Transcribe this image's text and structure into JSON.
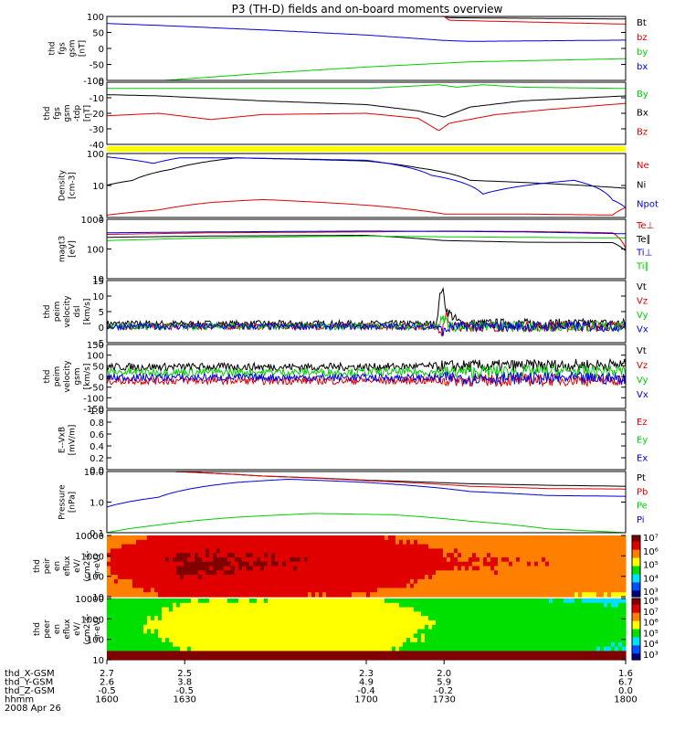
{
  "title": "P3 (TH-D) fields and on-board moments overview",
  "colors": {
    "black": "#000000",
    "red": "#e00000",
    "green": "#00cc00",
    "blue": "#0000e0",
    "yellow": "#ffff00"
  },
  "chart_data": [
    {
      "type": "line",
      "id": "fgs-gsm",
      "ylabel": [
        "thd",
        "fgs",
        "gsm",
        "[nT]"
      ],
      "ylim": [
        -100,
        100
      ],
      "yticks": [
        "100",
        "50",
        "0",
        "-50",
        "-100"
      ],
      "legend": [
        "Bt",
        "bz",
        "by",
        "bx"
      ],
      "series": [
        {
          "name": "Bt",
          "color": "black",
          "x": [
            1600,
            1730,
            1732,
            1800
          ],
          "y": [
            100,
            100,
            96,
            92
          ]
        },
        {
          "name": "bz",
          "color": "red",
          "x": [
            1600,
            1730,
            1732,
            1800
          ],
          "y": [
            100,
            100,
            88,
            76
          ]
        },
        {
          "name": "by",
          "color": "green",
          "x": [
            1600,
            1622,
            1660,
            1700,
            1740,
            1800
          ],
          "y": [
            -125,
            -100,
            -78,
            -58,
            -42,
            -32
          ]
        },
        {
          "name": "bx",
          "color": "blue",
          "x": [
            1600,
            1620,
            1660,
            1700,
            1730,
            1740,
            1800
          ],
          "y": [
            78,
            72,
            58,
            42,
            25,
            22,
            26
          ]
        }
      ]
    },
    {
      "type": "line",
      "id": "fgs-gsm-tdp",
      "ylabel": [
        "thd",
        "fgs",
        "gsm",
        "-tdp",
        "[nT]"
      ],
      "ylim": [
        -45,
        5
      ],
      "yticks": [
        "0",
        "-10",
        "-20",
        "-30",
        "-40"
      ],
      "legend": [
        "By",
        "Bx",
        "Bz"
      ],
      "series": [
        {
          "name": "By",
          "color": "green",
          "x": [
            1600,
            1640,
            1700,
            1728,
            1735,
            1745,
            1760,
            1800
          ],
          "y": [
            0,
            0,
            0,
            3,
            1,
            3,
            1,
            0
          ]
        },
        {
          "name": "Bx",
          "color": "black",
          "x": [
            1600,
            1620,
            1660,
            1700,
            1720,
            1730,
            1740,
            1760,
            1800
          ],
          "y": [
            -5,
            -6,
            -10,
            -13,
            -18,
            -23,
            -15,
            -10,
            -6
          ]
        },
        {
          "name": "Bz",
          "color": "red",
          "x": [
            1600,
            1620,
            1640,
            1660,
            1700,
            1720,
            1728,
            1732,
            1750,
            1770,
            1800
          ],
          "y": [
            -22,
            -20,
            -25,
            -21,
            -20,
            -24,
            -34,
            -28,
            -21,
            -17,
            -12
          ]
        }
      ]
    },
    {
      "type": "line",
      "id": "density",
      "log": true,
      "ylabel": [
        "Density",
        "[cm-3]"
      ],
      "ylim": [
        0.8,
        300
      ],
      "yticks": [
        "100",
        "10",
        "1"
      ],
      "legend": [
        "Ne",
        "Ni",
        "Npot"
      ],
      "series": [
        {
          "name": "Ne",
          "color": "red",
          "x": [
            1600,
            1620,
            1640,
            1660,
            1700,
            1730,
            1760,
            1795,
            1800
          ],
          "y": [
            1,
            1.6,
            3.2,
            4.2,
            2.5,
            1.1,
            1.1,
            1.0,
            2.0
          ]
        },
        {
          "name": "Ni",
          "color": "black",
          "x": [
            1600,
            1610,
            1625,
            1650,
            1700,
            1720,
            1740,
            1800
          ],
          "y": [
            16,
            25,
            70,
            200,
            150,
            80,
            25,
            12
          ]
        },
        {
          "name": "Npot",
          "color": "blue",
          "x": [
            1600,
            1618,
            1628,
            1650,
            1700,
            1725,
            1745,
            1780,
            1795,
            1800
          ],
          "y": [
            220,
            120,
            200,
            200,
            160,
            40,
            7,
            25,
            4,
            2
          ]
        }
      ]
    },
    {
      "type": "line",
      "id": "temperature",
      "log": true,
      "ylabel": [
        "magt3",
        "[eV]"
      ],
      "ylim": [
        10,
        2000
      ],
      "yticks": [
        "1000",
        "100",
        "10"
      ],
      "legend": [
        "Te⊥",
        "Te∥",
        "Ti⊥",
        "Ti∥"
      ],
      "series": [
        {
          "name": "Te⊥",
          "color": "red",
          "x": [
            1600,
            1640,
            1700,
            1730,
            1760,
            1795,
            1800
          ],
          "y": [
            520,
            600,
            650,
            700,
            680,
            600,
            150
          ]
        },
        {
          "name": "Te∥",
          "color": "black",
          "x": [
            1600,
            1640,
            1700,
            1730,
            1745,
            1760,
            1795,
            1800
          ],
          "y": [
            400,
            450,
            480,
            300,
            280,
            260,
            250,
            120
          ]
        },
        {
          "name": "Ti⊥",
          "color": "blue",
          "x": [
            1600,
            1640,
            1700,
            1730,
            1760,
            1800
          ],
          "y": [
            600,
            650,
            700,
            680,
            650,
            550
          ]
        },
        {
          "name": "Ti∥",
          "color": "green",
          "x": [
            1600,
            1640,
            1700,
            1730,
            1760,
            1800
          ],
          "y": [
            300,
            380,
            450,
            420,
            400,
            380
          ]
        }
      ]
    },
    {
      "type": "line",
      "id": "peim-velocity",
      "noisy": 1.2,
      "ylabel": [
        "thd",
        "peim",
        "velocity",
        "dsl",
        "[km/s]"
      ],
      "ylim": [
        -6,
        17
      ],
      "yticks": [
        "15",
        "10",
        "5",
        "0",
        "-5"
      ],
      "legend": [
        "Vt",
        "Vz",
        "Vy",
        "Vx"
      ],
      "series": [
        {
          "name": "Vt",
          "color": "black",
          "x": [
            1600,
            1727,
            1729,
            1731,
            1733,
            1735,
            1737,
            1800
          ],
          "y": [
            1,
            1,
            15,
            6,
            4,
            2,
            1,
            1
          ]
        },
        {
          "name": "Vz",
          "color": "red",
          "x": [
            1600,
            1727,
            1729,
            1731,
            1733,
            1800
          ],
          "y": [
            0,
            0,
            -3,
            4,
            0,
            0
          ]
        },
        {
          "name": "Vy",
          "color": "green",
          "x": [
            1600,
            1727,
            1730,
            1733,
            1800
          ],
          "y": [
            0,
            0,
            3,
            0,
            0
          ]
        },
        {
          "name": "Vx",
          "color": "blue",
          "x": [
            1600,
            1727,
            1730,
            1733,
            1800
          ],
          "y": [
            0,
            0,
            -2,
            0,
            0
          ]
        }
      ]
    },
    {
      "type": "line",
      "id": "peim-velocity-gsm",
      "noisy": 18,
      "ylabel": [
        "thd",
        "peim",
        "velocity",
        "gsm",
        "[km/s]"
      ],
      "ylim": [
        -150,
        150
      ],
      "yticks": [
        "150",
        "100",
        "50",
        "0",
        "-50",
        "-100",
        "-150"
      ],
      "legend": [
        "Vt",
        "Vz",
        "Vy",
        "Vx"
      ],
      "series": [
        {
          "name": "Vt",
          "color": "black",
          "x": [
            1600,
            1700,
            1800
          ],
          "y": [
            45,
            45,
            55
          ]
        },
        {
          "name": "Vz",
          "color": "red",
          "x": [
            1600,
            1700,
            1800
          ],
          "y": [
            -20,
            -20,
            -15
          ]
        },
        {
          "name": "Vy",
          "color": "green",
          "x": [
            1600,
            1700,
            1800
          ],
          "y": [
            20,
            20,
            25
          ]
        },
        {
          "name": "Vx",
          "color": "blue",
          "x": [
            1600,
            1700,
            1800
          ],
          "y": [
            -5,
            -5,
            -10
          ]
        }
      ]
    },
    {
      "type": "line",
      "id": "e-vxb",
      "ylabel": [
        "E--VxB",
        "[mV/m]"
      ],
      "ylim": [
        0,
        1
      ],
      "yticks": [
        "1.0",
        "0.8",
        "0.6",
        "0.4",
        "0.2",
        "0.0"
      ],
      "legend": [
        "Ez",
        "Ey",
        "Ex"
      ],
      "series": []
    },
    {
      "type": "line",
      "id": "pressure",
      "log": true,
      "ylabel": [
        "Pressure",
        "[nPa]"
      ],
      "ylim": [
        0.05,
        12
      ],
      "yticks": [
        "10.0",
        "1.0",
        "0.1"
      ],
      "legend": [
        "Pt",
        "Pb",
        "Pe",
        "Pi"
      ],
      "series": [
        {
          "name": "Pt",
          "color": "black",
          "x": [
            1600,
            1626,
            1660,
            1700,
            1740,
            1770,
            1800
          ],
          "y": [
            25,
            12,
            8,
            5.5,
            4,
            3.5,
            3.2
          ]
        },
        {
          "name": "Pb",
          "color": "red",
          "x": [
            1600,
            1626,
            1660,
            1700,
            1740,
            1770,
            1800
          ],
          "y": [
            25,
            12,
            8,
            5.3,
            3.2,
            2.6,
            2.5
          ]
        },
        {
          "name": "Pe",
          "color": "green",
          "x": [
            1600,
            1620,
            1650,
            1680,
            1710,
            1740,
            1770,
            1800
          ],
          "y": [
            0.05,
            0.1,
            0.2,
            0.28,
            0.25,
            0.14,
            0.07,
            0.05
          ]
        },
        {
          "name": "Pi",
          "color": "blue",
          "x": [
            1600,
            1620,
            1650,
            1670,
            1700,
            1740,
            1770,
            1800
          ],
          "y": [
            0.5,
            1.2,
            4.5,
            6,
            4.5,
            2,
            1.4,
            1.3
          ]
        }
      ]
    },
    {
      "type": "heatmap",
      "id": "peir-en-eflux",
      "ylabel": [
        "thd",
        "peir",
        "en",
        "eflux",
        "eV/",
        "(cm2-s-",
        "sr-eV)"
      ],
      "ylim": [
        8,
        25000
      ],
      "yticks": [
        "10000",
        "1000",
        "100",
        "10"
      ],
      "colorbar": {
        "range_exp": [
          3,
          7
        ],
        "labels": [
          "10⁷",
          "10⁶",
          "10⁵",
          "10⁴",
          "10³"
        ]
      },
      "description_levels": {
        "x": [
          1600,
          1630,
          1700,
          1730,
          1800
        ],
        "level": [
          6.2,
          6.8,
          6.6,
          6.2,
          6.0
        ]
      }
    },
    {
      "type": "heatmap",
      "id": "peer-en-eflux",
      "ylabel": [
        "thd",
        "peer",
        "en",
        "eflux",
        "eV/",
        "(cm2-s-",
        "sr-eV)"
      ],
      "ylim": [
        7,
        25000
      ],
      "yticks": [
        "10000",
        "1000",
        "100",
        "10"
      ],
      "colorbar": {
        "range_exp": [
          3,
          8
        ],
        "labels": [
          "10⁸",
          "10⁷",
          "10⁶",
          "10⁵",
          "10⁴",
          "10³"
        ]
      },
      "description_levels": {
        "x": [
          1600,
          1630,
          1700,
          1730,
          1800
        ],
        "level": [
          5.2,
          5.8,
          6.0,
          5.4,
          5.0
        ]
      }
    }
  ],
  "x_axis": {
    "ticks": [
      1600,
      1630,
      1700,
      1730,
      1800
    ],
    "rows": [
      {
        "label": "thd_X-GSM",
        "values": [
          "2.7",
          "2.5",
          "2.3",
          "2.0",
          "1.6"
        ]
      },
      {
        "label": "thd_Y-GSM",
        "values": [
          "2.6",
          "3.8",
          "4.9",
          "5.9",
          "6.7"
        ]
      },
      {
        "label": "thd_Z-GSM",
        "values": [
          "-0.5",
          "-0.5",
          "-0.4",
          "-0.2",
          "0.0"
        ]
      },
      {
        "label": "hhmm",
        "values": [
          "1600",
          "1630",
          "1700",
          "1730",
          "1800"
        ]
      }
    ],
    "date": "2008 Apr 26"
  }
}
